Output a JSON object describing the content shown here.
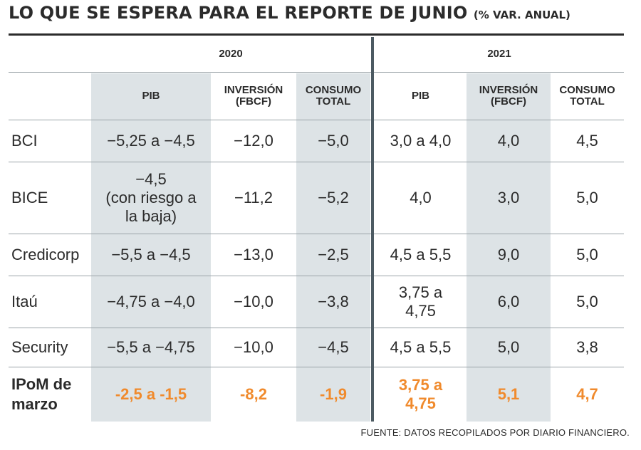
{
  "header": {
    "title": "LO QUE SE ESPERA PARA EL REPORTE DE JUNIO",
    "subtitle": "(% VAR. ANUAL)"
  },
  "years": [
    "2020",
    "2021"
  ],
  "columns": [
    {
      "label": "PIB"
    },
    {
      "label": "INVERSIÓN (FBCF)"
    },
    {
      "label": "CONSUMO TOTAL"
    },
    {
      "label": "PIB"
    },
    {
      "label": "INVERSIÓN (FBCF)"
    },
    {
      "label": "CONSUMO TOTAL"
    }
  ],
  "rows": [
    {
      "label": "BCI",
      "values": [
        "−5,25 a −4,5",
        "−12,0",
        "−5,0",
        "3,0 a 4,0",
        "4,0",
        "4,5"
      ]
    },
    {
      "label": "BICE",
      "values": [
        "−4,5\n(con riesgo a\nla baja)",
        "−11,2",
        "−5,2",
        "4,0",
        "3,0",
        "5,0"
      ]
    },
    {
      "label": "Credicorp",
      "values": [
        "−5,5 a −4,5",
        "−13,0",
        "−2,5",
        "4,5 a 5,5",
        "9,0",
        "5,0"
      ]
    },
    {
      "label": "Itaú",
      "values": [
        "−4,75 a −4,0",
        "−10,0",
        "−3,8",
        "3,75 a\n4,75",
        "6,0",
        "5,0"
      ]
    },
    {
      "label": "Security",
      "values": [
        "−5,5 a −4,75",
        "−10,0",
        "−4,5",
        "4,5 a 5,5",
        "5,0",
        "3,8"
      ]
    },
    {
      "label": "IPoM de\nmarzo",
      "values": [
        "-2,5 a -1,5",
        "-8,2",
        "-1,9",
        "3,75 a\n4,75",
        "5,1",
        "4,7"
      ],
      "highlight": true
    }
  ],
  "source": "FUENTE: DATOS RECOPILADOS POR DIARIO FINANCIERO.",
  "colors": {
    "text": "#2b2b2b",
    "highlight": "#f08a2c",
    "shaded_column": "#dde3e6",
    "divider": "#4c5a62",
    "rule": "#9aa3a8"
  }
}
